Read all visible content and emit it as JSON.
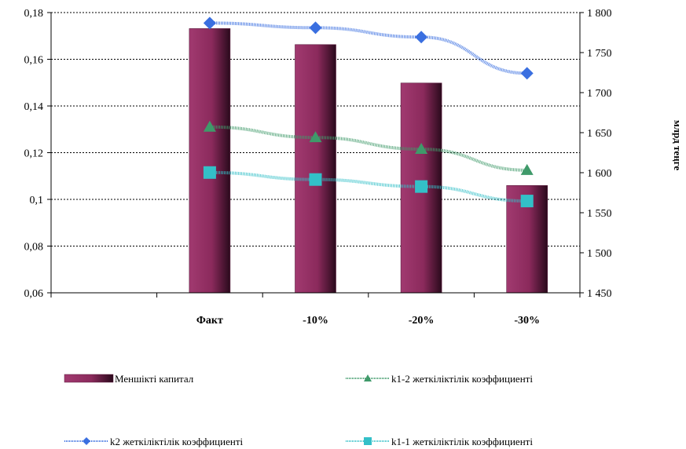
{
  "chart_data": {
    "type": "bar+line",
    "categories": [
      "",
      "Факт",
      "-10%",
      "-20%",
      "-30%"
    ],
    "bar_series": {
      "name": "Меншікті капитал",
      "axis": "right",
      "values": [
        null,
        1780,
        1760,
        1712,
        1584
      ],
      "color": "#8b2a5c"
    },
    "line_series": [
      {
        "name": "k1-2 жеткіліктілік коэффициенті",
        "axis": "left",
        "values": [
          null,
          0.131,
          0.1265,
          0.1215,
          0.1125
        ],
        "color": "#3f9a6a",
        "marker": "triangle"
      },
      {
        "name": "k2 жеткіліктілік коэффициенті",
        "axis": "left",
        "values": [
          null,
          0.1755,
          0.1735,
          0.1695,
          0.154
        ],
        "color": "#3a6fe0",
        "marker": "diamond"
      },
      {
        "name": "k1-1 жеткіліктілік коэффициенті",
        "axis": "left",
        "values": [
          null,
          0.1115,
          0.1085,
          0.1055,
          0.0993
        ],
        "color": "#33c0c8",
        "marker": "square"
      }
    ],
    "y_left": {
      "range": [
        0.06,
        0.18
      ],
      "ticks": [
        0.18,
        0.16,
        0.14,
        0.12,
        0.1,
        0.08,
        0.06
      ],
      "tick_labels": [
        "0,18",
        "0,16",
        "0,14",
        "0,12",
        "0,1",
        "0,08",
        "0,06"
      ]
    },
    "y_right": {
      "range": [
        1450,
        1800
      ],
      "ticks": [
        1800,
        1750,
        1700,
        1650,
        1600,
        1550,
        1500,
        1450
      ],
      "tick_labels": [
        "1 800",
        "1 750",
        "1 700",
        "1 650",
        "1 600",
        "1 550",
        "1 500",
        "1 450"
      ],
      "label": "млрд теңге"
    },
    "grid": "dashed-horizontal",
    "legend": {
      "placement": "bottom",
      "order": [
        "Меншікті капитал",
        "k1-2 жеткіліктілік коэффициенті",
        "k2 жеткіліктілік коэффициенті",
        "k1-1 жеткіліктілік коэффициенті"
      ]
    }
  }
}
